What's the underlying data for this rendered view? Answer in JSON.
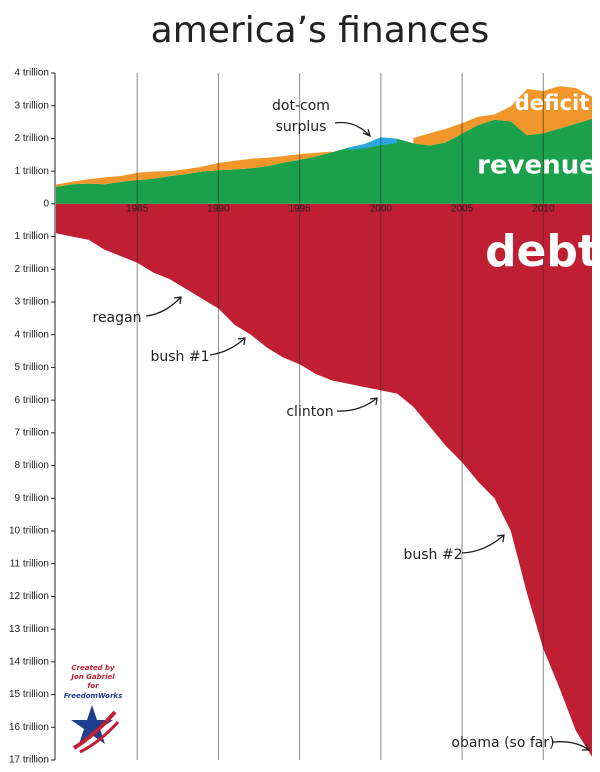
{
  "chart_data": {
    "type": "area",
    "title": "america’s finances",
    "x": [
      1980,
      1981,
      1982,
      1983,
      1984,
      1985,
      1986,
      1987,
      1988,
      1989,
      1990,
      1991,
      1992,
      1993,
      1994,
      1995,
      1996,
      1997,
      1998,
      1999,
      2000,
      2001,
      2002,
      2003,
      2004,
      2005,
      2006,
      2007,
      2008,
      2009,
      2010,
      2011,
      2012,
      2013
    ],
    "series": [
      {
        "name": "revenue",
        "color": "#1ba14b",
        "values": [
          0.52,
          0.6,
          0.62,
          0.6,
          0.67,
          0.73,
          0.77,
          0.85,
          0.91,
          0.99,
          1.03,
          1.05,
          1.09,
          1.15,
          1.26,
          1.35,
          1.45,
          1.58,
          1.72,
          1.83,
          2.03,
          1.99,
          1.85,
          1.78,
          1.88,
          2.15,
          2.41,
          2.57,
          2.52,
          2.1,
          2.16,
          2.3,
          2.45,
          2.6
        ]
      },
      {
        "name": "deficit",
        "color": "#f0962a",
        "stack_on": 0,
        "values": [
          0.07,
          0.08,
          0.13,
          0.21,
          0.18,
          0.22,
          0.22,
          0.15,
          0.15,
          0.15,
          0.22,
          0.27,
          0.29,
          0.26,
          0.2,
          0.17,
          0.11,
          0.02,
          null,
          null,
          null,
          null,
          0.16,
          0.38,
          0.41,
          0.32,
          0.25,
          0.16,
          0.46,
          1.41,
          1.29,
          1.3,
          1.09,
          0.68
        ]
      },
      {
        "name": "surplus",
        "color": "#2aa7df",
        "inside": 0,
        "values": [
          null,
          null,
          null,
          null,
          null,
          null,
          null,
          null,
          null,
          null,
          null,
          null,
          null,
          null,
          null,
          null,
          null,
          null,
          0.07,
          0.13,
          0.24,
          0.13,
          null,
          null,
          null,
          null,
          null,
          null,
          null,
          null,
          null,
          null,
          null,
          null
        ]
      },
      {
        "name": "debt",
        "color": "#c01e32",
        "values": [
          -0.9,
          -1.0,
          -1.1,
          -1.4,
          -1.6,
          -1.8,
          -2.1,
          -2.3,
          -2.6,
          -2.9,
          -3.2,
          -3.7,
          -4.0,
          -4.4,
          -4.7,
          -4.9,
          -5.2,
          -5.4,
          -5.5,
          -5.6,
          -5.7,
          -5.8,
          -6.2,
          -6.8,
          -7.4,
          -7.9,
          -8.5,
          -9.0,
          -10.0,
          -11.9,
          -13.6,
          -14.8,
          -16.1,
          -16.9
        ]
      }
    ],
    "xlim": [
      1980,
      2013
    ],
    "xticks": [
      1985,
      1990,
      1995,
      2000,
      2005,
      2010
    ],
    "ylim": [
      -17,
      4
    ],
    "yticks": [
      {
        "value": 4,
        "label": "4 trillion"
      },
      {
        "value": 3,
        "label": "3 trillion"
      },
      {
        "value": 2,
        "label": "2 trillion"
      },
      {
        "value": 1,
        "label": "1 trillion"
      },
      0,
      {
        "value": -1,
        "label": "1 trillion"
      },
      {
        "value": -2,
        "label": "2 trillion"
      },
      {
        "value": -3,
        "label": "3 trillion"
      },
      {
        "value": -4,
        "label": "4 trillion"
      },
      {
        "value": -5,
        "label": "5 trillion"
      },
      {
        "value": -6,
        "label": "6 trillion"
      },
      {
        "value": -7,
        "label": "7 trillion"
      },
      {
        "value": -8,
        "label": "8 trillion"
      },
      {
        "value": -9,
        "label": "9 trillion"
      },
      {
        "value": -10,
        "label": "10 trillion"
      },
      {
        "value": -11,
        "label": "11 trillion"
      },
      {
        "value": -12,
        "label": "12 trillion"
      },
      {
        "value": -13,
        "label": "13 trillion"
      },
      {
        "value": -14,
        "label": "14 trillion"
      },
      {
        "value": -15,
        "label": "15 trillion"
      },
      {
        "value": -16,
        "label": "16 trillion"
      },
      {
        "value": -17,
        "label": "17 trillion"
      }
    ],
    "grid": true,
    "annotations": [
      "dot-com",
      "reagan",
      "bush #1",
      "clinton",
      "bush #2",
      "obama (so far)"
    ],
    "credit": [
      "Created by",
      "Jon Gabriel",
      "for",
      "FreedomWorks"
    ]
  }
}
